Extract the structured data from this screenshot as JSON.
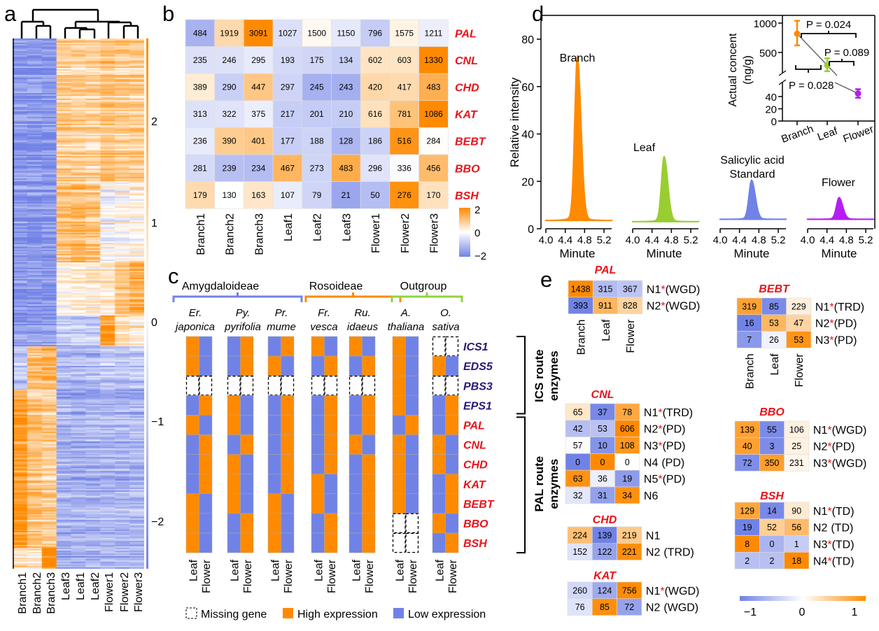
{
  "panel_labels": {
    "a": "a",
    "b": "b",
    "c": "c",
    "d": "d",
    "e": "e"
  },
  "colors": {
    "high": "#ff8a00",
    "low": "#7182e6",
    "mid": "#ffffff",
    "branch": "#ff8a00",
    "leaf": "#9acd32",
    "standard": "#7182e6",
    "flower": "#b41ef2"
  },
  "chart_data": [
    {
      "panel": "a",
      "type": "heatmap",
      "columns": [
        "Branch1",
        "Branch2",
        "Branch3",
        "Leaf3",
        "Leaf1",
        "Leaf2",
        "Flower1",
        "Flower2",
        "Flower3"
      ],
      "colorbar_ticks": [
        "2",
        "1",
        "0",
        "−1",
        "−2"
      ],
      "colorbar_range": [
        -2.5,
        2.5
      ],
      "dendrogram": "columns"
    },
    {
      "panel": "b",
      "type": "heatmap",
      "columns": [
        "Branch1",
        "Branch2",
        "Branch3",
        "Leaf1",
        "Leaf2",
        "Leaf3",
        "Flower1",
        "Flower2",
        "Flower3"
      ],
      "rows": [
        {
          "gene": "PAL",
          "values": [
            484,
            1919,
            3091,
            1027,
            1500,
            1150,
            796,
            1575,
            1211
          ]
        },
        {
          "gene": "CNL",
          "values": [
            235,
            246,
            295,
            193,
            175,
            134,
            602,
            603,
            1330
          ]
        },
        {
          "gene": "CHD",
          "values": [
            389,
            290,
            447,
            297,
            245,
            243,
            420,
            417,
            483
          ]
        },
        {
          "gene": "KAT",
          "values": [
            313,
            322,
            375,
            217,
            201,
            210,
            616,
            781,
            1086
          ]
        },
        {
          "gene": "BEBT",
          "values": [
            236,
            390,
            401,
            177,
            188,
            128,
            186,
            516,
            284
          ]
        },
        {
          "gene": "BBO",
          "values": [
            281,
            239,
            234,
            467,
            273,
            483,
            296,
            336,
            456
          ]
        },
        {
          "gene": "BSH",
          "values": [
            179,
            130,
            163,
            107,
            79,
            21,
            50,
            276,
            170
          ]
        }
      ],
      "color_scale": "row z-score",
      "colorbar_range": [
        -2,
        2
      ],
      "colorbar_ticks": [
        "2",
        "0",
        "−2"
      ]
    },
    {
      "panel": "c",
      "type": "heatmap",
      "groups": [
        {
          "name": "Amygdaloideae",
          "color": "#7182e6",
          "species": [
            {
              "genus": "Er.",
              "epithet": "japonica"
            },
            {
              "genus": "Py.",
              "epithet": "pyrifolia"
            },
            {
              "genus": "Pr.",
              "epithet": "mume"
            }
          ]
        },
        {
          "name": "Rosoideae",
          "color": "#ff8a00",
          "species": [
            {
              "genus": "Fr.",
              "epithet": "vesca"
            },
            {
              "genus": "Ru.",
              "epithet": "idaeus"
            }
          ]
        },
        {
          "name": "Outgroup",
          "color": "#8fd43a",
          "species": [
            {
              "genus": "A.",
              "epithet": "thaliana"
            },
            {
              "genus": "O.",
              "epithet": "sativa"
            }
          ]
        }
      ],
      "columns_per_species": [
        "Leaf",
        "Flower"
      ],
      "genes": [
        "ICS1",
        "EDS5",
        "PBS3",
        "EPS1",
        "PAL",
        "CNL",
        "CHD",
        "KAT",
        "BEBT",
        "BBO",
        "BSH"
      ],
      "routes": [
        {
          "label_lines": [
            "ICS route",
            "enzymes"
          ],
          "genes": [
            "ICS1",
            "EDS5",
            "PBS3",
            "EPS1"
          ]
        },
        {
          "label_lines": [
            "PAL route",
            "enzymes"
          ],
          "genes": [
            "PAL",
            "CNL",
            "CHD",
            "KAT",
            "BEBT",
            "BBO",
            "BSH"
          ]
        }
      ],
      "matrix_key": "H = high, L = low, M = missing; each string = Leaf,Flower per gene",
      "matrix": [
        [
          "HL",
          "HL",
          "MM",
          "LH",
          "HL",
          "LH",
          "LH",
          "LH",
          "HL",
          "HL",
          "HL"
        ],
        [
          "LH",
          "LH",
          "MM",
          "HL",
          "HL",
          "LH",
          "HL",
          "HL",
          "HL",
          "LH",
          "LH"
        ],
        [
          "LH",
          "HL",
          "MM",
          "LH",
          "LH",
          "LH",
          "LH",
          "LH",
          "HL",
          "HL",
          "HL"
        ],
        [
          "HL",
          "LH",
          "MM",
          "LH",
          "LH",
          "LH",
          "LH",
          "HL",
          "HL",
          "LH",
          "LH"
        ],
        [
          "HL",
          "LH",
          "MM",
          "LH",
          "LH",
          "HL",
          "LH",
          "LH",
          "LH",
          "LH",
          "LH"
        ],
        [
          "HL",
          "HL",
          "HL",
          "HL",
          "LH",
          "HL",
          "HL",
          "HL",
          "HL",
          "MM",
          "MM"
        ],
        [
          "MM",
          "HL",
          "MM",
          "LH",
          "LH",
          "HL",
          "HL",
          "LH",
          "LH",
          "HL",
          "LH"
        ]
      ],
      "legend": {
        "missing": "Missing gene",
        "high": "High expression",
        "low": "Low expression"
      }
    },
    {
      "panel": "d",
      "type": "line",
      "ylabel": "Relative intensity",
      "xlabel": "Minute",
      "ylim": [
        0,
        85
      ],
      "yticks": [
        "0",
        "20",
        "40",
        "60",
        "80"
      ],
      "xticks": [
        "4.0",
        "4.4",
        "4.8",
        "5.2"
      ],
      "xlim": [
        4.0,
        5.35
      ],
      "traces": [
        {
          "name": "Branch",
          "label_lines": [
            "Branch"
          ],
          "color": "#ff8a00",
          "peak_time": 4.65,
          "peak_height": 69,
          "baseline": 3.5
        },
        {
          "name": "Leaf",
          "label_lines": [
            "Leaf"
          ],
          "color": "#9acd32",
          "peak_time": 4.65,
          "peak_height": 29,
          "baseline": 3
        },
        {
          "name": "Salicylic acid Standard",
          "label_lines": [
            "Salicylic acid",
            "Standard"
          ],
          "color": "#7182e6",
          "peak_time": 4.65,
          "peak_height": 19.5,
          "baseline": 4
        },
        {
          "name": "Flower",
          "label_lines": [
            "Flower"
          ],
          "color": "#b41ef2",
          "peak_time": 4.65,
          "peak_height": 12.5,
          "baseline": 4
        }
      ],
      "inset": {
        "type": "scatter",
        "ylabel_lines": [
          "Actual concent",
          "(ng/g)"
        ],
        "yticks_upper": [
          "500",
          "1000"
        ],
        "yticks_lower": [
          "0",
          "20",
          "40"
        ],
        "axis_break": true,
        "categories": [
          "Branch",
          "Leaf",
          "Flower"
        ],
        "values": [
          820,
          280,
          45
        ],
        "errors_low": [
          620,
          180,
          38
        ],
        "errors_high": [
          1040,
          400,
          52
        ],
        "comparisons": [
          {
            "pair": [
              "Branch",
              "Flower"
            ],
            "label": "P = 0.024"
          },
          {
            "pair": [
              "Leaf",
              "Flower"
            ],
            "label": "P = 0.089"
          },
          {
            "pair": [
              "Branch",
              "Leaf"
            ],
            "label": "P = 0.028"
          }
        ]
      }
    },
    {
      "panel": "e",
      "type": "heatmap",
      "columns": [
        "Branch",
        "Leaf",
        "Flower"
      ],
      "color_scale": "row z-score",
      "colorbar_range": [
        -1,
        1
      ],
      "colorbar_ticks": [
        "−1",
        "0",
        "1"
      ],
      "tables": [
        {
          "gene": "PAL",
          "rows": [
            {
              "values": [
                1438,
                315,
                367
              ],
              "name": "N1",
              "star": true,
              "tag": "(WGD)"
            },
            {
              "values": [
                393,
                911,
                828
              ],
              "name": "N2",
              "star": true,
              "tag": "(WGD)"
            }
          ]
        },
        {
          "gene": "CNL",
          "rows": [
            {
              "values": [
                65,
                37,
                78
              ],
              "name": "N1",
              "star": true,
              "tag": "(TRD)"
            },
            {
              "values": [
                42,
                53,
                606
              ],
              "name": "N2",
              "star": true,
              "tag": "(PD)"
            },
            {
              "values": [
                57,
                10,
                108
              ],
              "name": "N3",
              "star": true,
              "tag": "(PD)"
            },
            {
              "values": [
                0,
                0,
                0
              ],
              "name": "N4",
              "star": false,
              "tag": "(PD)",
              "levels": [
                -1,
                1,
                0
              ]
            },
            {
              "values": [
                63,
                36,
                19
              ],
              "name": "N5",
              "star": true,
              "tag": "(PD)"
            },
            {
              "values": [
                32,
                31,
                34
              ],
              "name": "N6",
              "star": false,
              "tag": ""
            }
          ]
        },
        {
          "gene": "CHD",
          "rows": [
            {
              "values": [
                224,
                139,
                219
              ],
              "name": "N1",
              "star": false,
              "tag": ""
            },
            {
              "values": [
                152,
                122,
                221
              ],
              "name": "N2",
              "star": false,
              "tag": "(TRD)"
            }
          ]
        },
        {
          "gene": "KAT",
          "rows": [
            {
              "values": [
                260,
                124,
                756
              ],
              "name": "N1",
              "star": true,
              "tag": "(WGD)"
            },
            {
              "values": [
                76,
                85,
                72
              ],
              "name": "N2",
              "star": false,
              "tag": "(WGD)"
            }
          ]
        },
        {
          "gene": "BEBT",
          "rows": [
            {
              "values": [
                319,
                85,
                229
              ],
              "name": "N1",
              "star": true,
              "tag": "(TRD)"
            },
            {
              "values": [
                16,
                53,
                47
              ],
              "name": "N2",
              "star": true,
              "tag": "(PD)"
            },
            {
              "values": [
                7,
                26,
                53
              ],
              "name": "N3",
              "star": true,
              "tag": "(PD)"
            }
          ]
        },
        {
          "gene": "BBO",
          "rows": [
            {
              "values": [
                139,
                55,
                106
              ],
              "name": "N1",
              "star": true,
              "tag": "(WGD)"
            },
            {
              "values": [
                40,
                3,
                25
              ],
              "name": "N2",
              "star": true,
              "tag": "(PD)"
            },
            {
              "values": [
                72,
                350,
                231
              ],
              "name": "N3",
              "star": true,
              "tag": "(WGD)"
            }
          ]
        },
        {
          "gene": "BSH",
          "rows": [
            {
              "values": [
                129,
                14,
                90
              ],
              "name": "N1",
              "star": true,
              "tag": "(TD)"
            },
            {
              "values": [
                19,
                52,
                56
              ],
              "name": "N2",
              "star": false,
              "tag": "(TD)"
            },
            {
              "values": [
                8,
                0,
                1
              ],
              "name": "N3",
              "star": true,
              "tag": "(TD)"
            },
            {
              "values": [
                2,
                2,
                18
              ],
              "name": "N4",
              "star": true,
              "tag": "(TD)"
            }
          ]
        }
      ]
    }
  ]
}
